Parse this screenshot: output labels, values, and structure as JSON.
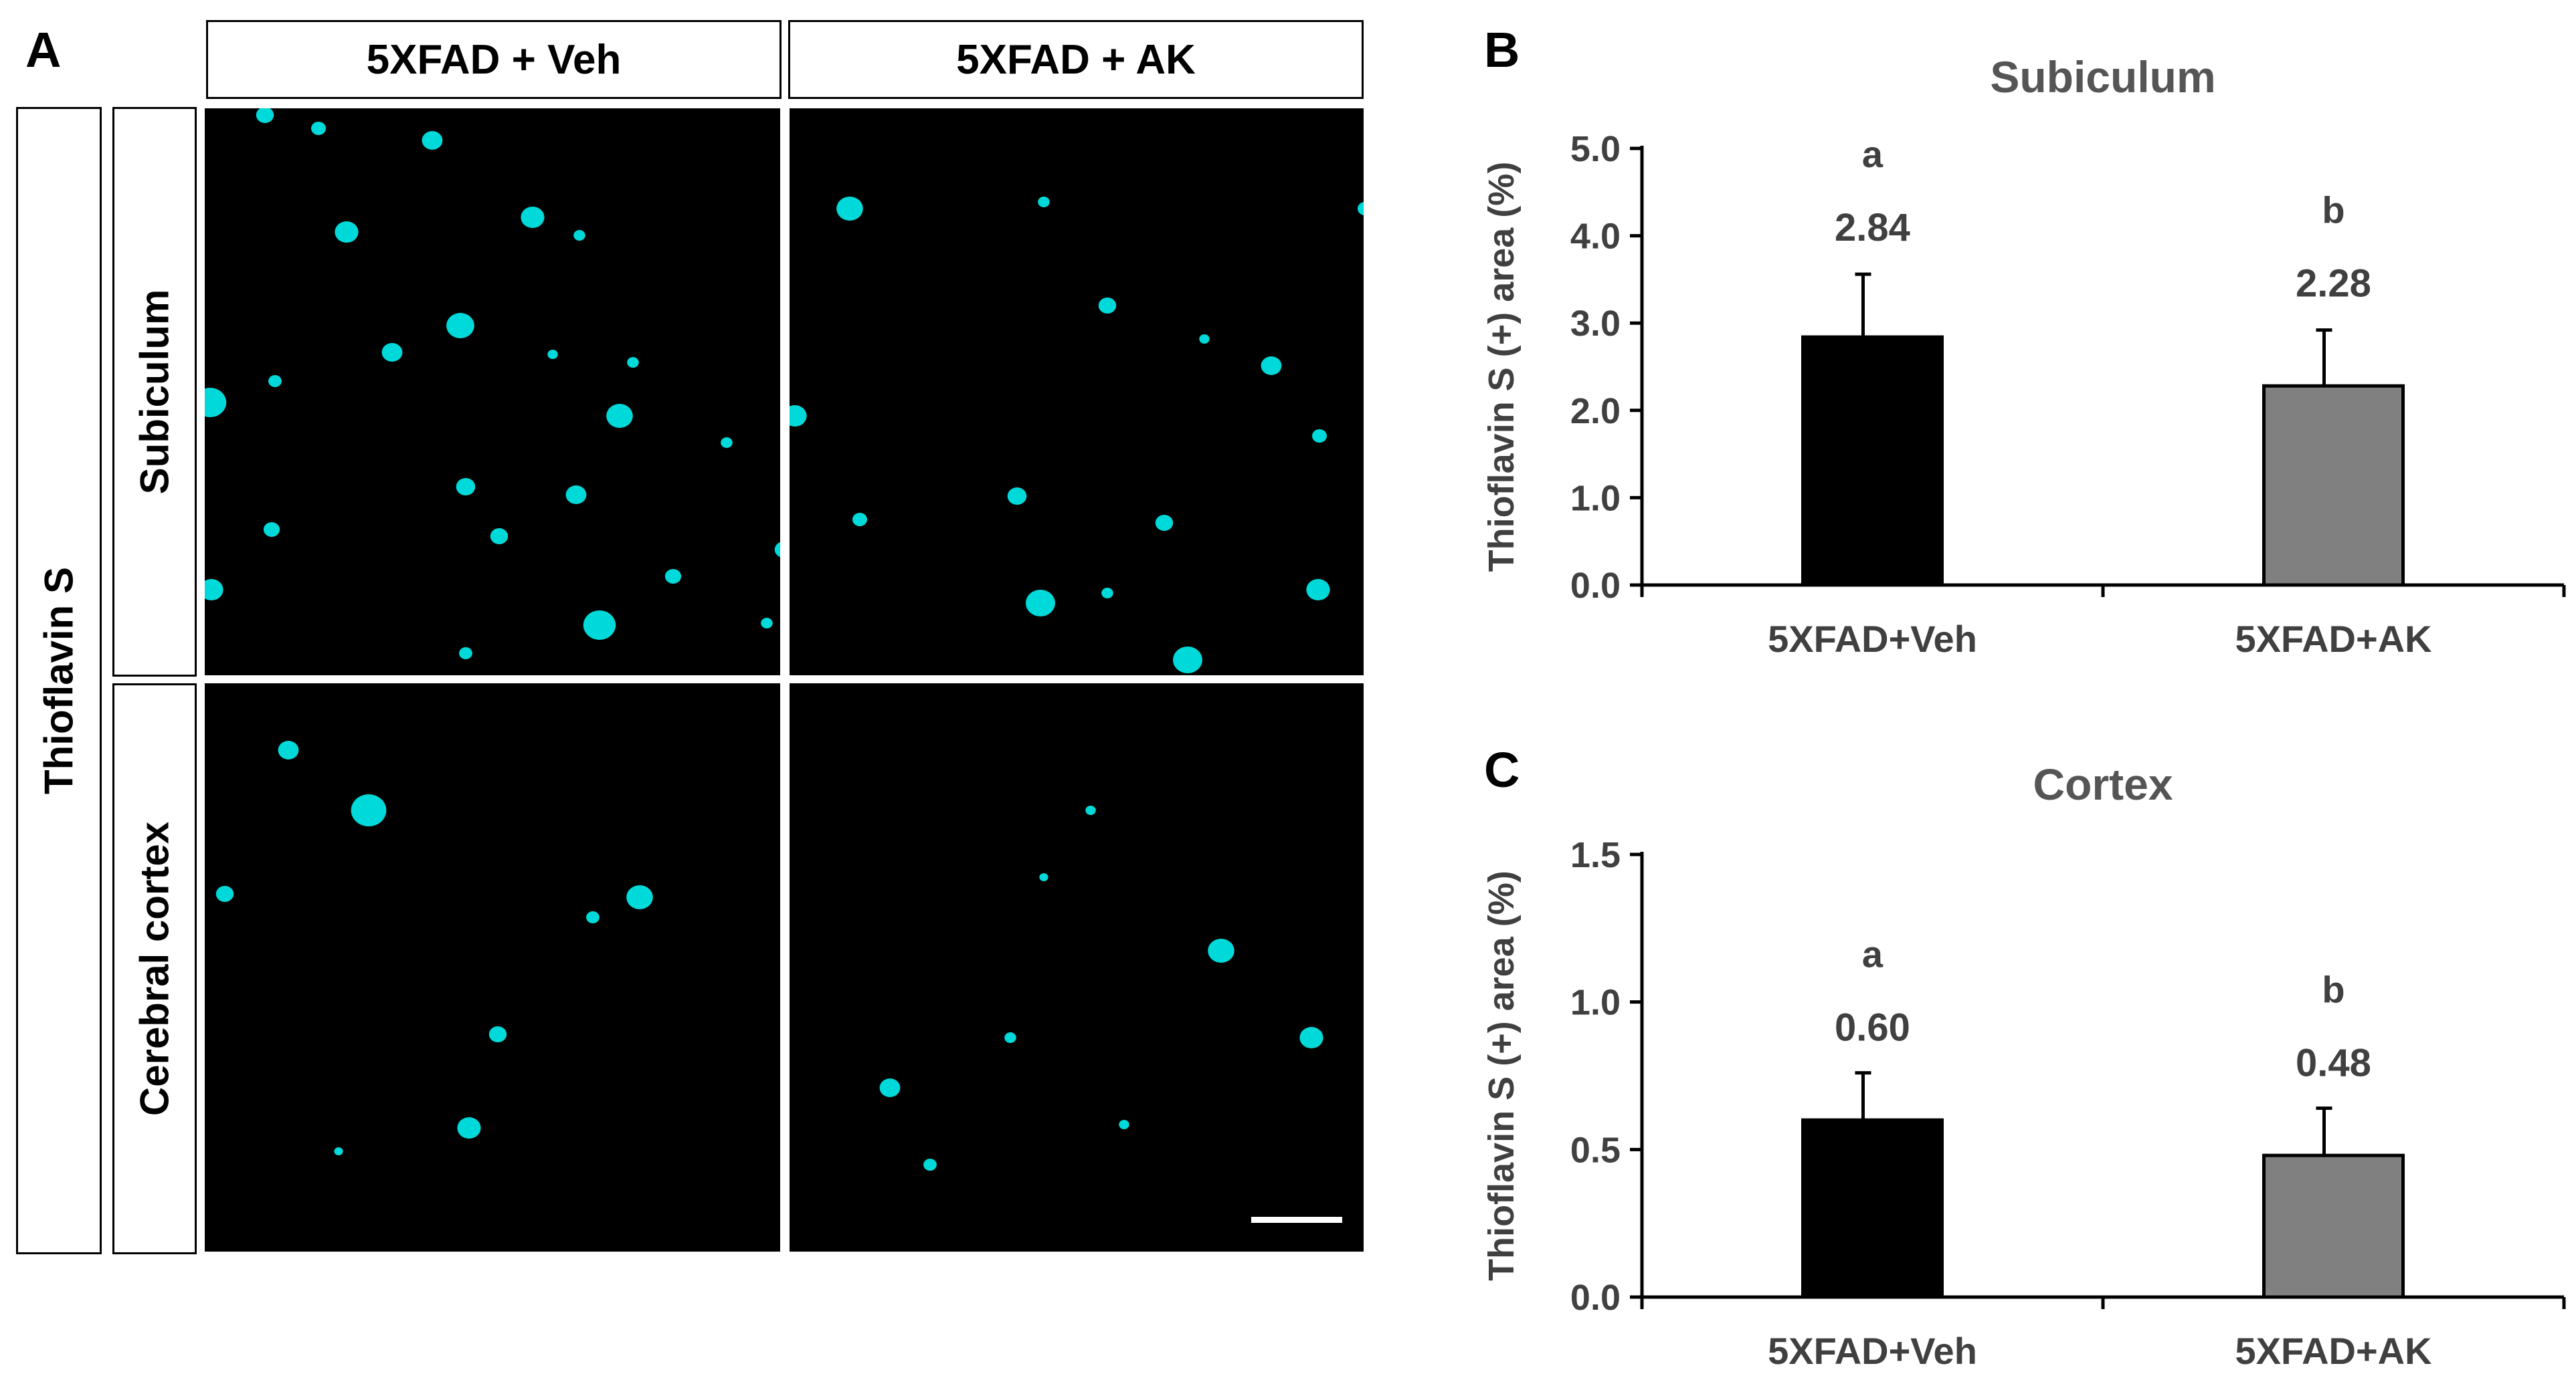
{
  "panel_a": {
    "letter": "A",
    "column_headers": [
      "5XFAD + Veh",
      "5XFAD + AK"
    ],
    "stain_label": "Thioflavin S",
    "row_labels": [
      "Subiculum",
      "Cerebral cortex"
    ],
    "plaque_color": "#00e5e5",
    "background_color": "#000000"
  },
  "chart_data": [
    {
      "panel_letter": "B",
      "type": "bar",
      "title": "Subiculum",
      "categories": [
        "5XFAD+Veh",
        "5XFAD+AK"
      ],
      "values": [
        2.84,
        2.28
      ],
      "errors": [
        0.72,
        0.64
      ],
      "value_labels": [
        "2.84",
        "2.28"
      ],
      "significance_letters": [
        "a",
        "b"
      ],
      "bar_colors": [
        "#000000",
        "#808080"
      ],
      "ylabel": "Thioflavin S (+) area (%)",
      "xlabel": "",
      "ylim": [
        0,
        5.0
      ],
      "yticks": [
        0.0,
        1.0,
        2.0,
        3.0,
        4.0,
        5.0
      ],
      "ytick_labels": [
        "0.0",
        "1.0",
        "2.0",
        "3.0",
        "4.0",
        "5.0"
      ],
      "grid": false
    },
    {
      "panel_letter": "C",
      "type": "bar",
      "title": "Cortex",
      "categories": [
        "5XFAD+Veh",
        "5XFAD+AK"
      ],
      "values": [
        0.6,
        0.48
      ],
      "errors": [
        0.16,
        0.16
      ],
      "value_labels": [
        "0.60",
        "0.48"
      ],
      "significance_letters": [
        "a",
        "b"
      ],
      "bar_colors": [
        "#000000",
        "#808080"
      ],
      "ylabel": "Thioflavin S (+) area (%)",
      "xlabel": "",
      "ylim": [
        0,
        1.5
      ],
      "yticks": [
        0.0,
        0.5,
        1.0,
        1.5
      ],
      "ytick_labels": [
        "0.0",
        "0.5",
        "1.0",
        "1.5"
      ],
      "grid": false
    }
  ]
}
